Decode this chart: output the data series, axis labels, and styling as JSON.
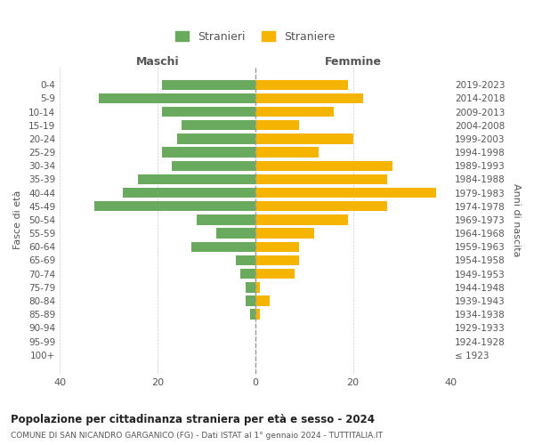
{
  "age_groups": [
    "100+",
    "95-99",
    "90-94",
    "85-89",
    "80-84",
    "75-79",
    "70-74",
    "65-69",
    "60-64",
    "55-59",
    "50-54",
    "45-49",
    "40-44",
    "35-39",
    "30-34",
    "25-29",
    "20-24",
    "15-19",
    "10-14",
    "5-9",
    "0-4"
  ],
  "birth_years": [
    "≤ 1923",
    "1924-1928",
    "1929-1933",
    "1934-1938",
    "1939-1943",
    "1944-1948",
    "1949-1953",
    "1954-1958",
    "1959-1963",
    "1964-1968",
    "1969-1973",
    "1974-1978",
    "1979-1983",
    "1984-1988",
    "1989-1993",
    "1994-1998",
    "1999-2003",
    "2004-2008",
    "2009-2013",
    "2014-2018",
    "2019-2023"
  ],
  "maschi": [
    0,
    0,
    0,
    1,
    2,
    2,
    3,
    4,
    13,
    8,
    12,
    33,
    27,
    24,
    17,
    19,
    16,
    15,
    19,
    32,
    19
  ],
  "femmine": [
    0,
    0,
    0,
    1,
    3,
    1,
    8,
    9,
    9,
    12,
    19,
    27,
    37,
    27,
    28,
    13,
    20,
    9,
    16,
    22,
    19
  ],
  "maschi_color": "#6aaa5e",
  "femmine_color": "#f5b400",
  "background_color": "#ffffff",
  "grid_color": "#cccccc",
  "title": "Popolazione per cittadinanza straniera per età e sesso - 2024",
  "subtitle": "COMUNE DI SAN NICANDRO GARGANICO (FG) - Dati ISTAT al 1° gennaio 2024 - TUTTITALIA.IT",
  "ylabel_left": "Fasce di età",
  "ylabel_right": "Anni di nascita",
  "xlabel_maschi": "Maschi",
  "xlabel_femmine": "Femmine",
  "legend_maschi": "Stranieri",
  "legend_femmine": "Straniere",
  "xlim": 40,
  "xticks": [
    40,
    20,
    0,
    20,
    40
  ]
}
